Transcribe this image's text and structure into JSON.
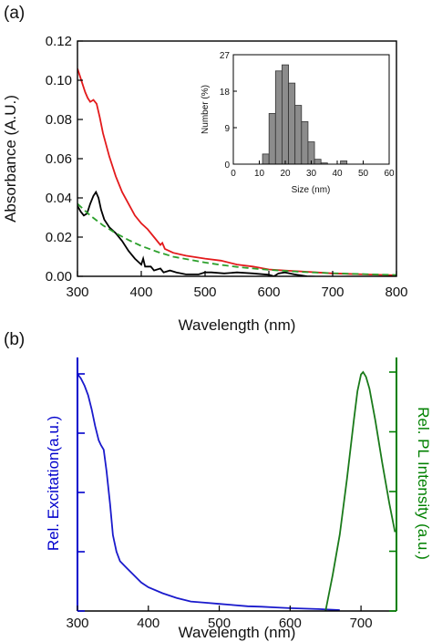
{
  "panel_labels": {
    "a": "(a)",
    "b": "(b)"
  },
  "chart_data": [
    {
      "id": "a-main",
      "type": "line",
      "xlabel": "Wavelength (nm)",
      "ylabel": "Absorbance (A.U.)",
      "xlim": [
        300,
        800
      ],
      "ylim": [
        0,
        0.12
      ],
      "xticks": [
        300,
        400,
        500,
        600,
        700,
        800
      ],
      "xtick_labels": [
        "300",
        "400",
        "500",
        "600",
        "700",
        "800"
      ],
      "yticks": [
        0,
        0.02,
        0.04,
        0.06,
        0.08,
        0.1,
        0.12
      ],
      "ytick_labels": [
        "0.00",
        "0.02",
        "0.04",
        "0.06",
        "0.08",
        "0.10",
        "0.12"
      ],
      "series": [
        {
          "color": "#e31a1c",
          "style": "solid",
          "points": [
            [
              300,
              0.106
            ],
            [
              304,
              0.102
            ],
            [
              308,
              0.098
            ],
            [
              312,
              0.094
            ],
            [
              316,
              0.091
            ],
            [
              320,
              0.089
            ],
            [
              325,
              0.09
            ],
            [
              330,
              0.088
            ],
            [
              335,
              0.081
            ],
            [
              340,
              0.073
            ],
            [
              350,
              0.061
            ],
            [
              360,
              0.051
            ],
            [
              370,
              0.043
            ],
            [
              380,
              0.037
            ],
            [
              390,
              0.031
            ],
            [
              400,
              0.027
            ],
            [
              410,
              0.024
            ],
            [
              420,
              0.02
            ],
            [
              430,
              0.016
            ],
            [
              433,
              0.017
            ],
            [
              437,
              0.014
            ],
            [
              450,
              0.012
            ],
            [
              470,
              0.0105
            ],
            [
              500,
              0.009
            ],
            [
              525,
              0.008
            ],
            [
              550,
              0.006
            ],
            [
              575,
              0.005
            ],
            [
              600,
              0.0035
            ],
            [
              625,
              0.003
            ],
            [
              650,
              0.0025
            ],
            [
              675,
              0.002
            ],
            [
              700,
              0.0015
            ],
            [
              750,
              0.001
            ],
            [
              800,
              0.0005
            ]
          ]
        },
        {
          "color": "#000000",
          "style": "solid",
          "points": [
            [
              300,
              0.036
            ],
            [
              305,
              0.033
            ],
            [
              310,
              0.031
            ],
            [
              315,
              0.032
            ],
            [
              320,
              0.037
            ],
            [
              325,
              0.041
            ],
            [
              329,
              0.043
            ],
            [
              333,
              0.04
            ],
            [
              337,
              0.034
            ],
            [
              342,
              0.029
            ],
            [
              350,
              0.025
            ],
            [
              360,
              0.022
            ],
            [
              370,
              0.018
            ],
            [
              380,
              0.013
            ],
            [
              390,
              0.009
            ],
            [
              400,
              0.006
            ],
            [
              403,
              0.009
            ],
            [
              406,
              0.005
            ],
            [
              415,
              0.005
            ],
            [
              420,
              0.003
            ],
            [
              430,
              0.004
            ],
            [
              435,
              0.002
            ],
            [
              445,
              0.003
            ],
            [
              455,
              0.002
            ],
            [
              470,
              0.001
            ],
            [
              490,
              0.001
            ],
            [
              500,
              0.002
            ],
            [
              510,
              0.002
            ],
            [
              530,
              0.0015
            ],
            [
              550,
              0.002
            ],
            [
              575,
              0.0015
            ],
            [
              600,
              0.0008
            ],
            [
              608,
              0.0
            ],
            [
              615,
              0.0015
            ],
            [
              625,
              0.002
            ],
            [
              640,
              0.001
            ],
            [
              660,
              0.0
            ],
            [
              700,
              -0.0005
            ],
            [
              720,
              -0.001
            ],
            [
              750,
              -0.0015
            ],
            [
              800,
              -0.0015
            ]
          ]
        },
        {
          "color": "#2ca02c",
          "style": "dashed",
          "points": [
            [
              300,
              0.037
            ],
            [
              320,
              0.031
            ],
            [
              340,
              0.026
            ],
            [
              360,
              0.022
            ],
            [
              380,
              0.0185
            ],
            [
              400,
              0.0155
            ],
            [
              425,
              0.0125
            ],
            [
              450,
              0.01
            ],
            [
              475,
              0.0085
            ],
            [
              500,
              0.007
            ],
            [
              525,
              0.0058
            ],
            [
              550,
              0.0048
            ],
            [
              575,
              0.004
            ],
            [
              600,
              0.0033
            ],
            [
              625,
              0.0028
            ],
            [
              650,
              0.0023
            ],
            [
              675,
              0.0019
            ],
            [
              700,
              0.0016
            ],
            [
              725,
              0.0013
            ],
            [
              750,
              0.0011
            ],
            [
              775,
              0.0009
            ],
            [
              800,
              0.0007
            ]
          ]
        }
      ]
    },
    {
      "id": "a-inset",
      "type": "bar",
      "xlabel": "Size (nm)",
      "ylabel": "Number (%)",
      "xlim": [
        0,
        60
      ],
      "ylim": [
        0,
        27
      ],
      "xticks": [
        0,
        10,
        20,
        30,
        40,
        50,
        60
      ],
      "xtick_labels": [
        "0",
        "10",
        "20",
        "30",
        "40",
        "50",
        "60"
      ],
      "yticks": [
        0,
        9,
        18,
        27
      ],
      "ytick_labels": [
        "0",
        "9",
        "18",
        "27"
      ],
      "bin_width": 2.5,
      "bins": [
        12.5,
        15,
        17.5,
        20,
        22.5,
        25,
        27.5,
        30,
        32.5,
        35,
        37.5,
        40,
        42.5
      ],
      "values": [
        2.5,
        12.5,
        23,
        24.5,
        20,
        14.5,
        10.5,
        5.5,
        1.2,
        0.3,
        0.0,
        0.0,
        0.8
      ],
      "color": "#8c8c8c"
    },
    {
      "id": "b-main",
      "type": "line",
      "xlabel": "Wavelength (nm)",
      "ylabel_left": "Rel. Excitation(a.u.)",
      "ylabel_right": "Rel. PL Intensity (a.u.)",
      "left_axis_color": "#0000cc",
      "right_axis_color": "#008000",
      "xlim": [
        300,
        750
      ],
      "ylim": [
        0,
        1
      ],
      "xticks": [
        300,
        400,
        500,
        600,
        700
      ],
      "xtick_labels": [
        "300",
        "400",
        "500",
        "600",
        "700"
      ],
      "yticks": [
        0,
        0.25,
        0.5,
        0.75,
        1.0
      ],
      "series": [
        {
          "color": "#1a1acc",
          "axis": "left",
          "points": [
            [
              300,
              1.0
            ],
            [
              305,
              0.98
            ],
            [
              310,
              0.95
            ],
            [
              315,
              0.91
            ],
            [
              320,
              0.85
            ],
            [
              325,
              0.78
            ],
            [
              330,
              0.72
            ],
            [
              333,
              0.7
            ],
            [
              337,
              0.68
            ],
            [
              341,
              0.59
            ],
            [
              346,
              0.45
            ],
            [
              350,
              0.32
            ],
            [
              355,
              0.25
            ],
            [
              360,
              0.21
            ],
            [
              370,
              0.18
            ],
            [
              380,
              0.15
            ],
            [
              390,
              0.12
            ],
            [
              400,
              0.1
            ],
            [
              420,
              0.075
            ],
            [
              440,
              0.055
            ],
            [
              460,
              0.04
            ],
            [
              480,
              0.035
            ],
            [
              500,
              0.03
            ],
            [
              520,
              0.025
            ],
            [
              540,
              0.02
            ],
            [
              560,
              0.018
            ],
            [
              580,
              0.015
            ],
            [
              600,
              0.012
            ],
            [
              620,
              0.01
            ],
            [
              640,
              0.008
            ],
            [
              660,
              0.005
            ],
            [
              670,
              0.004
            ]
          ]
        },
        {
          "color": "#1a7a1a",
          "axis": "right",
          "points": [
            [
              650,
              0.0
            ],
            [
              660,
              0.15
            ],
            [
              670,
              0.32
            ],
            [
              680,
              0.55
            ],
            [
              690,
              0.8
            ],
            [
              695,
              0.92
            ],
            [
              700,
              0.99
            ],
            [
              703,
              1.0
            ],
            [
              707,
              0.98
            ],
            [
              712,
              0.93
            ],
            [
              720,
              0.8
            ],
            [
              730,
              0.62
            ],
            [
              740,
              0.45
            ],
            [
              748,
              0.33
            ]
          ]
        }
      ]
    }
  ]
}
